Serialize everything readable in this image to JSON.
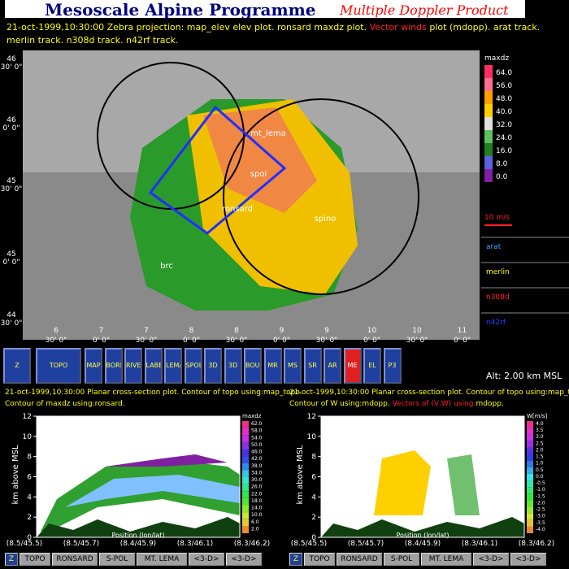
{
  "header": {
    "title": "Mesoscale Alpine Programme",
    "subtitle": "Multiple Doppler Product"
  },
  "info": {
    "line1a": "21-oct-1999,10:30:00  Zebra projection: map_elev elev plot.  ronsard maxdz plot.",
    "line1b": "Vector winds",
    "line1c": "plot (mdopp). arat track.",
    "line2": "merlin track.  n308d track.  n42rf track."
  },
  "map": {
    "y_labels": [
      [
        "46",
        "30' 0\""
      ],
      [
        "46",
        "0' 0\""
      ],
      [
        "45",
        "30' 0\""
      ],
      [
        "45",
        "0' 0\""
      ],
      [
        "44",
        "30' 0\""
      ]
    ],
    "x_labels": [
      [
        "6",
        "30' 0\""
      ],
      [
        "7",
        "0' 0\""
      ],
      [
        "7",
        "30' 0\""
      ],
      [
        "8",
        "0' 0\""
      ],
      [
        "8",
        "30' 0\""
      ],
      [
        "9",
        "0' 0\""
      ],
      [
        "9",
        "30' 0\""
      ],
      [
        "10",
        "0' 0\""
      ],
      [
        "10",
        "30' 0\""
      ],
      [
        "11",
        "0' 0\""
      ]
    ],
    "stations": [
      "mt_lema",
      "spol",
      "ronsard",
      "spino",
      "brc"
    ],
    "scale": {
      "title": "maxdz",
      "labels": [
        "64.0",
        "56.0",
        "48.0",
        "40.0",
        "32.0",
        "24.0",
        "16.0",
        "8.0",
        "0.0"
      ]
    },
    "vector_scale": "10 m/s",
    "tracks": [
      "arat",
      "merlin",
      "n308d",
      "n42rf"
    ]
  },
  "toolbar": {
    "buttons": [
      "Z",
      "TOPO",
      "MAP",
      "BORDERS",
      "RIVERS",
      "LABELS",
      "LEMA",
      "SPOL",
      "3D",
      "3D",
      "BOUNDS",
      "MR",
      "MS",
      "SR",
      "AR",
      "ME",
      "EL",
      "P3"
    ],
    "altitude": "Alt: 2.00 km MSL"
  },
  "cross_sections": [
    {
      "line1": "21-oct-1999,10:30:00 Planar cross-section plot. Contour of topo using:map_topo.",
      "line2a": "Contour of maxdz using:ronsard.",
      "line2b": "",
      "line2c": "",
      "y_title": "km above MSL",
      "yticks": [
        "0",
        "2",
        "4",
        "6",
        "8",
        "10",
        "12"
      ],
      "x_labels": [
        "(8.5/45.5)",
        "(8.5/45.7)",
        "(8.4/45.9)",
        "(8.3/46.1)",
        "(8.3/46.2)"
      ],
      "x_title": "Position (lon/lat)",
      "scale_title": "maxdz",
      "scale_labels": [
        "62.0",
        "58.0",
        "54.0",
        "50.0",
        "46.0",
        "42.0",
        "38.0",
        "34.0",
        "30.0",
        "26.0",
        "22.0",
        "18.0",
        "14.0",
        "10.0",
        "6.0",
        "2.0"
      ],
      "buttons": [
        "Z",
        "TOPO",
        "RONSARD",
        "S-POL",
        "MT. LEMA",
        "<3-D>",
        "<3-D>"
      ]
    },
    {
      "line1": "21-oct-1999,10:30:00 Planar cross-section plot. Contour of topo using:map_topo.",
      "line2a": "Contour of W using:mdopp.",
      "line2b": "Vectors of (V,W) using:",
      "line2c": "mdopp.",
      "y_title": "km above MSL",
      "yticks": [
        "0",
        "2",
        "4",
        "6",
        "8",
        "10",
        "12"
      ],
      "x_labels": [
        "(8.5/45.5)",
        "(8.5/45.7)",
        "(8.4/45.9)",
        "(8.3/46.1)",
        "(8.3/46.2)"
      ],
      "x_title": "Position (lon/lat)",
      "scale_title": "W[m/s]",
      "scale_labels": [
        "4.0",
        "3.5",
        "3.0",
        "2.5",
        "2.0",
        "1.5",
        "1.0",
        "0.5",
        "0.0",
        "-0.5",
        "-1.0",
        "-1.5",
        "-2.0",
        "-2.5",
        "-3.0",
        "-3.5",
        "-4.0"
      ],
      "buttons": [
        "Z",
        "TOPO",
        "RONSARD",
        "S-POL",
        "MT. LEMA",
        "<3-D>",
        "<3-D>"
      ]
    }
  ]
}
